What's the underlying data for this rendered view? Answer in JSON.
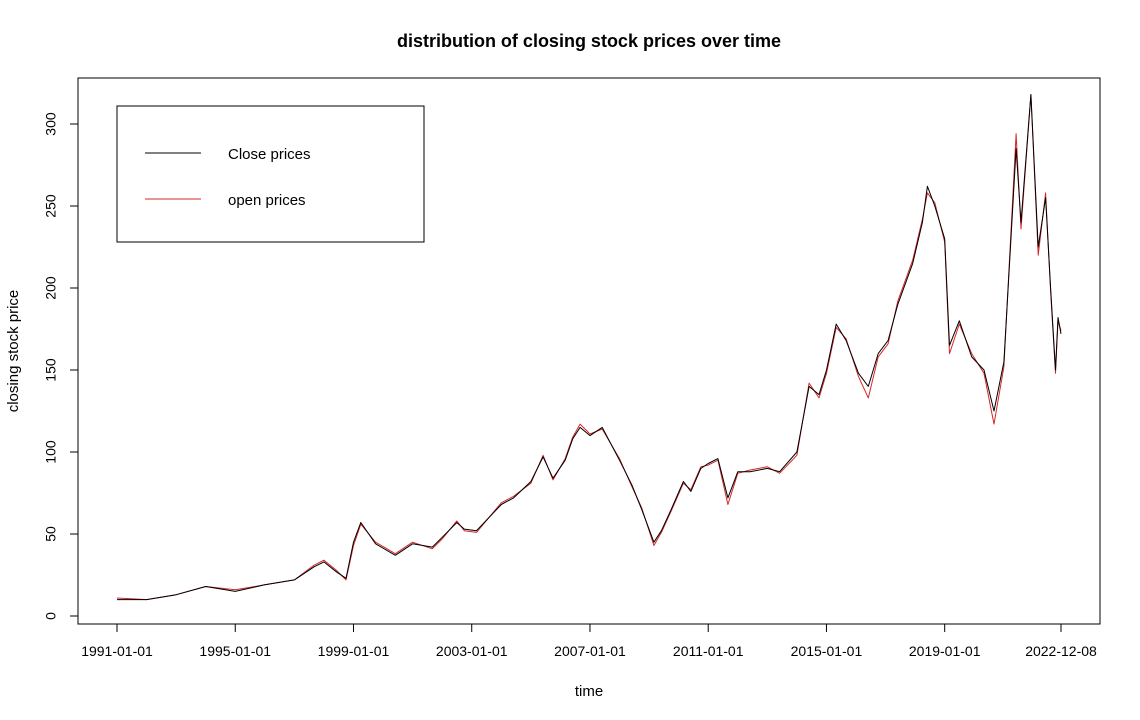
{
  "chart_data": {
    "type": "line",
    "title": "distribution of closing stock prices over time",
    "xlabel": "time",
    "ylabel": "closing stock price",
    "xlim": [
      "1991-01-01",
      "2022-12-08"
    ],
    "ylim": [
      0,
      320
    ],
    "x_ticks": [
      "1991-01-01",
      "1995-01-01",
      "1999-01-01",
      "2003-01-01",
      "2007-01-01",
      "2011-01-01",
      "2015-01-01",
      "2019-01-01",
      "2022-12-08"
    ],
    "y_ticks": [
      0,
      50,
      100,
      150,
      200,
      250,
      300
    ],
    "grid": false,
    "legend_position": "top-left",
    "series": [
      {
        "name": "Close prices",
        "color": "#000000",
        "points": [
          [
            "1991-01-01",
            10
          ],
          [
            "1992-01-01",
            10
          ],
          [
            "1993-01-01",
            13
          ],
          [
            "1994-01-01",
            18
          ],
          [
            "1995-01-01",
            15
          ],
          [
            "1996-01-01",
            19
          ],
          [
            "1997-01-01",
            22
          ],
          [
            "1997-09-01",
            30
          ],
          [
            "1998-01-01",
            33
          ],
          [
            "1998-06-01",
            27
          ],
          [
            "1998-10-01",
            23
          ],
          [
            "1999-01-01",
            45
          ],
          [
            "1999-04-01",
            57
          ],
          [
            "1999-10-01",
            44
          ],
          [
            "2000-06-01",
            37
          ],
          [
            "2001-01-01",
            44
          ],
          [
            "2001-09-01",
            42
          ],
          [
            "2002-01-01",
            48
          ],
          [
            "2002-07-01",
            57
          ],
          [
            "2002-10-01",
            53
          ],
          [
            "2003-03-01",
            52
          ],
          [
            "2004-01-01",
            68
          ],
          [
            "2004-06-01",
            72
          ],
          [
            "2005-01-01",
            82
          ],
          [
            "2005-06-01",
            97
          ],
          [
            "2005-10-01",
            84
          ],
          [
            "2006-03-01",
            95
          ],
          [
            "2006-06-01",
            108
          ],
          [
            "2006-09-01",
            115
          ],
          [
            "2007-01-01",
            110
          ],
          [
            "2007-06-01",
            115
          ],
          [
            "2008-01-01",
            95
          ],
          [
            "2008-06-01",
            80
          ],
          [
            "2008-10-01",
            65
          ],
          [
            "2009-03-01",
            45
          ],
          [
            "2009-06-01",
            52
          ],
          [
            "2009-10-01",
            65
          ],
          [
            "2010-03-01",
            82
          ],
          [
            "2010-06-01",
            76
          ],
          [
            "2010-10-01",
            90
          ],
          [
            "2011-01-01",
            93
          ],
          [
            "2011-05-01",
            96
          ],
          [
            "2011-09-01",
            72
          ],
          [
            "2012-01-01",
            88
          ],
          [
            "2012-06-01",
            88
          ],
          [
            "2013-01-01",
            90
          ],
          [
            "2013-06-01",
            88
          ],
          [
            "2014-01-01",
            100
          ],
          [
            "2014-06-01",
            140
          ],
          [
            "2014-10-01",
            135
          ],
          [
            "2015-01-01",
            150
          ],
          [
            "2015-05-01",
            178
          ],
          [
            "2015-09-01",
            168
          ],
          [
            "2016-02-01",
            148
          ],
          [
            "2016-06-01",
            140
          ],
          [
            "2016-10-01",
            160
          ],
          [
            "2017-02-01",
            168
          ],
          [
            "2017-06-01",
            190
          ],
          [
            "2017-12-01",
            215
          ],
          [
            "2018-04-01",
            240
          ],
          [
            "2018-06-01",
            262
          ],
          [
            "2018-09-01",
            250
          ],
          [
            "2019-01-01",
            230
          ],
          [
            "2019-03-01",
            165
          ],
          [
            "2019-07-01",
            180
          ],
          [
            "2019-12-01",
            158
          ],
          [
            "2020-05-01",
            150
          ],
          [
            "2020-09-01",
            125
          ],
          [
            "2021-01-01",
            155
          ],
          [
            "2021-06-01",
            285
          ],
          [
            "2021-08-01",
            240
          ],
          [
            "2021-12-01",
            318
          ],
          [
            "2022-03-01",
            225
          ],
          [
            "2022-06-01",
            255
          ],
          [
            "2022-08-01",
            200
          ],
          [
            "2022-10-01",
            150
          ],
          [
            "2022-11-01",
            182
          ],
          [
            "2022-12-08",
            172
          ]
        ]
      },
      {
        "name": "open prices",
        "color": "#d62728",
        "points": [
          [
            "1991-01-01",
            11
          ],
          [
            "1992-01-01",
            10
          ],
          [
            "1993-01-01",
            13
          ],
          [
            "1994-01-01",
            18
          ],
          [
            "1995-01-01",
            16
          ],
          [
            "1996-01-01",
            19
          ],
          [
            "1997-01-01",
            22
          ],
          [
            "1997-09-01",
            31
          ],
          [
            "1998-01-01",
            34
          ],
          [
            "1998-06-01",
            28
          ],
          [
            "1998-10-01",
            22
          ],
          [
            "1999-01-01",
            43
          ],
          [
            "1999-04-01",
            56
          ],
          [
            "1999-10-01",
            45
          ],
          [
            "2000-06-01",
            38
          ],
          [
            "2001-01-01",
            45
          ],
          [
            "2001-09-01",
            41
          ],
          [
            "2002-01-01",
            47
          ],
          [
            "2002-07-01",
            58
          ],
          [
            "2002-10-01",
            52
          ],
          [
            "2003-03-01",
            51
          ],
          [
            "2004-01-01",
            69
          ],
          [
            "2004-06-01",
            73
          ],
          [
            "2005-01-01",
            81
          ],
          [
            "2005-06-01",
            98
          ],
          [
            "2005-10-01",
            83
          ],
          [
            "2006-03-01",
            96
          ],
          [
            "2006-06-01",
            109
          ],
          [
            "2006-09-01",
            117
          ],
          [
            "2007-01-01",
            111
          ],
          [
            "2007-06-01",
            114
          ],
          [
            "2008-01-01",
            96
          ],
          [
            "2008-06-01",
            79
          ],
          [
            "2008-10-01",
            66
          ],
          [
            "2009-03-01",
            43
          ],
          [
            "2009-06-01",
            51
          ],
          [
            "2009-10-01",
            64
          ],
          [
            "2010-03-01",
            81
          ],
          [
            "2010-06-01",
            77
          ],
          [
            "2010-10-01",
            91
          ],
          [
            "2011-01-01",
            92
          ],
          [
            "2011-05-01",
            95
          ],
          [
            "2011-09-01",
            68
          ],
          [
            "2012-01-01",
            87
          ],
          [
            "2012-06-01",
            89
          ],
          [
            "2013-01-01",
            91
          ],
          [
            "2013-06-01",
            87
          ],
          [
            "2014-01-01",
            98
          ],
          [
            "2014-06-01",
            142
          ],
          [
            "2014-10-01",
            133
          ],
          [
            "2015-01-01",
            148
          ],
          [
            "2015-05-01",
            176
          ],
          [
            "2015-09-01",
            169
          ],
          [
            "2016-02-01",
            146
          ],
          [
            "2016-06-01",
            133
          ],
          [
            "2016-10-01",
            158
          ],
          [
            "2017-02-01",
            166
          ],
          [
            "2017-06-01",
            192
          ],
          [
            "2017-12-01",
            217
          ],
          [
            "2018-04-01",
            242
          ],
          [
            "2018-06-01",
            258
          ],
          [
            "2018-09-01",
            252
          ],
          [
            "2019-01-01",
            228
          ],
          [
            "2019-03-01",
            160
          ],
          [
            "2019-07-01",
            178
          ],
          [
            "2019-12-01",
            160
          ],
          [
            "2020-05-01",
            148
          ],
          [
            "2020-09-01",
            117
          ],
          [
            "2021-01-01",
            152
          ],
          [
            "2021-06-01",
            294
          ],
          [
            "2021-08-01",
            236
          ],
          [
            "2021-12-01",
            318
          ],
          [
            "2022-03-01",
            220
          ],
          [
            "2022-06-01",
            258
          ],
          [
            "2022-08-01",
            198
          ],
          [
            "2022-10-01",
            148
          ],
          [
            "2022-11-01",
            180
          ],
          [
            "2022-12-08",
            174
          ]
        ]
      }
    ]
  }
}
